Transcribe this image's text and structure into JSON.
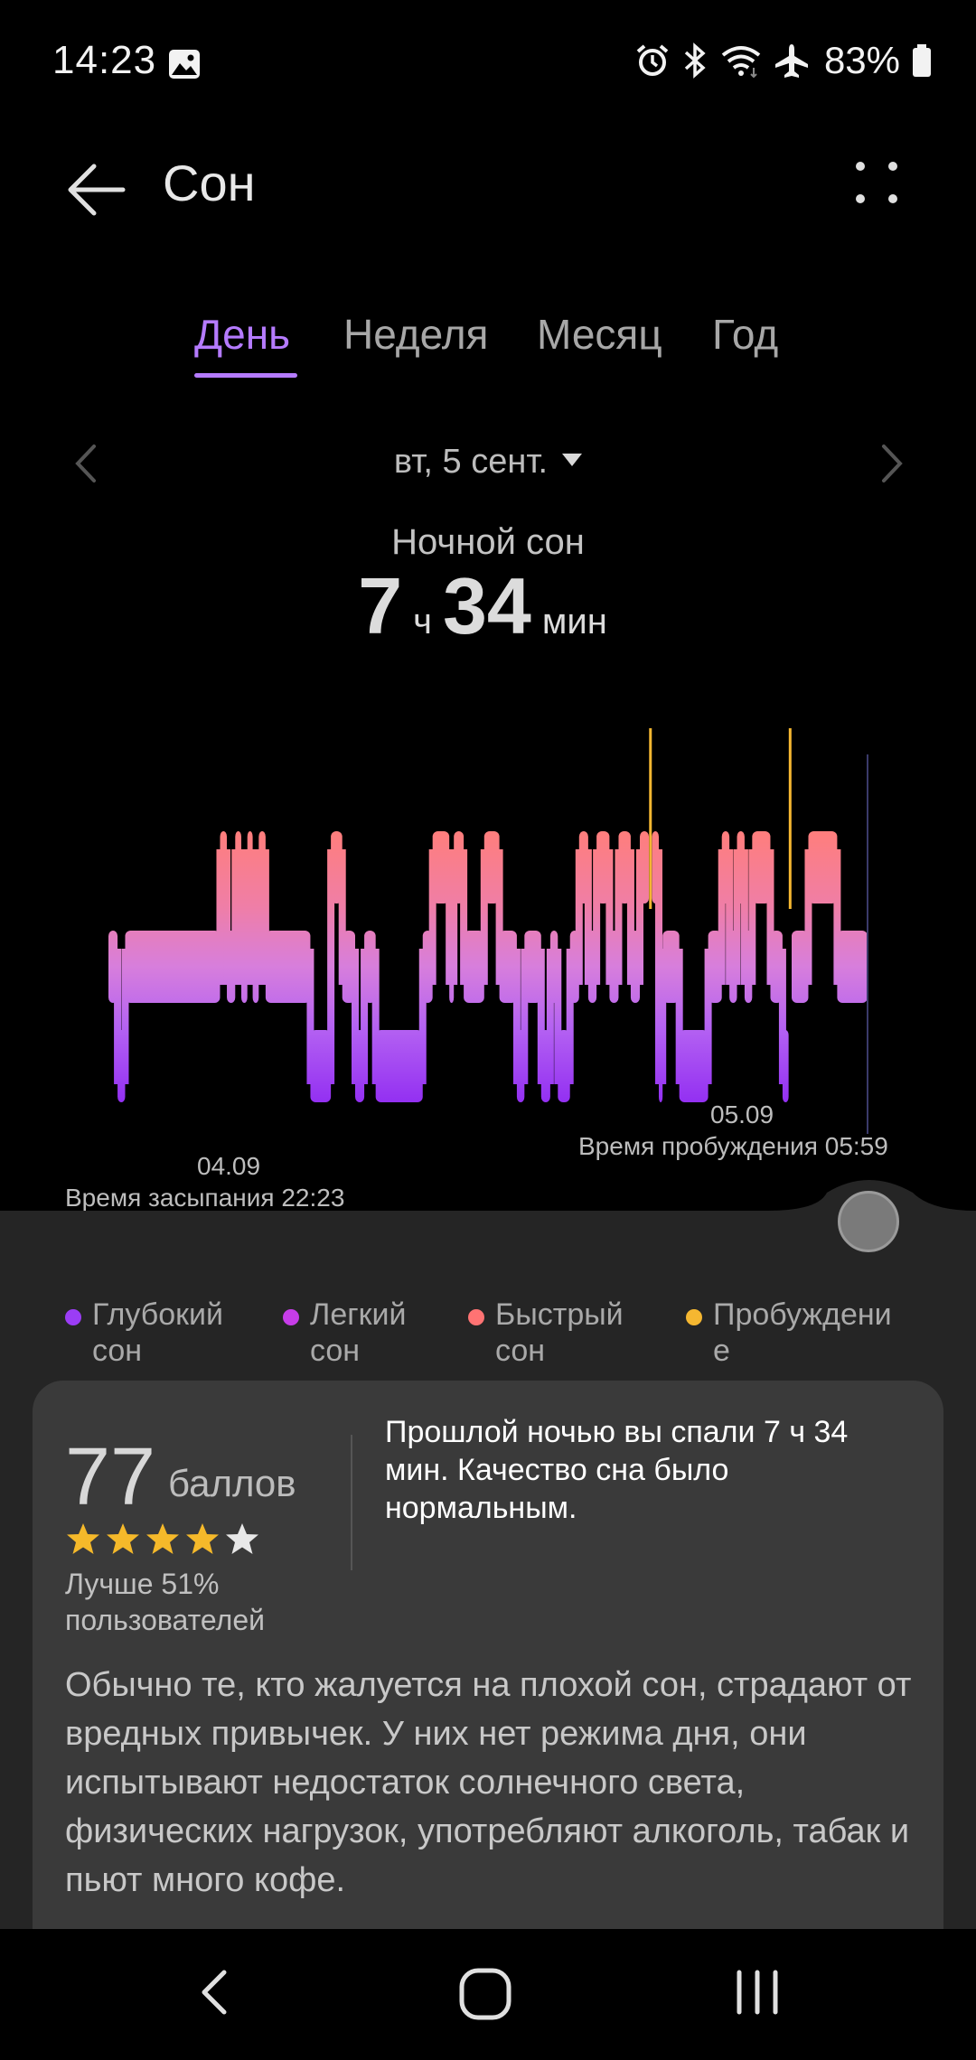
{
  "status_bar": {
    "time": "14:23",
    "battery": "83%",
    "icons": [
      "gallery-icon",
      "alarm-icon",
      "bluetooth-icon",
      "wifi-icon",
      "airplane-icon",
      "battery-icon"
    ]
  },
  "app_bar": {
    "title": "Сон"
  },
  "tabs": [
    {
      "label": "День",
      "active": true
    },
    {
      "label": "Неделя",
      "active": false
    },
    {
      "label": "Месяц",
      "active": false
    },
    {
      "label": "Год",
      "active": false
    }
  ],
  "date_nav": {
    "date": "вт, 5 сент."
  },
  "summary": {
    "label": "Ночной сон",
    "hours": "7",
    "hours_unit": "ч",
    "minutes": "34",
    "minutes_unit": "мин"
  },
  "chart_data": {
    "type": "hypnogram",
    "stage_colors": {
      "deep": "#9b3df5",
      "light": "#c77df0",
      "rem": "#ff7d80",
      "awake": "#f5b731"
    },
    "start_date": "04.09",
    "end_date": "05.09",
    "sleep_onset_label": "Время засыпания 22:23",
    "wake_label": "Время пробуждения 05:59",
    "segments": [
      {
        "stage": "light",
        "from": 0.0,
        "to": 0.012
      },
      {
        "stage": "deep",
        "from": 0.012,
        "to": 0.022
      },
      {
        "stage": "light",
        "from": 0.022,
        "to": 0.147
      },
      {
        "stage": "rem",
        "from": 0.147,
        "to": 0.156
      },
      {
        "stage": "light",
        "from": 0.156,
        "to": 0.167
      },
      {
        "stage": "rem",
        "from": 0.167,
        "to": 0.175
      },
      {
        "stage": "light",
        "from": 0.175,
        "to": 0.183
      },
      {
        "stage": "rem",
        "from": 0.183,
        "to": 0.19
      },
      {
        "stage": "light",
        "from": 0.19,
        "to": 0.198
      },
      {
        "stage": "rem",
        "from": 0.198,
        "to": 0.207
      },
      {
        "stage": "light",
        "from": 0.207,
        "to": 0.266
      },
      {
        "stage": "deep",
        "from": 0.266,
        "to": 0.293
      },
      {
        "stage": "rem",
        "from": 0.293,
        "to": 0.308
      },
      {
        "stage": "light",
        "from": 0.308,
        "to": 0.325
      },
      {
        "stage": "deep",
        "from": 0.325,
        "to": 0.337
      },
      {
        "stage": "light",
        "from": 0.337,
        "to": 0.352
      },
      {
        "stage": "deep",
        "from": 0.352,
        "to": 0.414
      },
      {
        "stage": "light",
        "from": 0.414,
        "to": 0.427
      },
      {
        "stage": "rem",
        "from": 0.427,
        "to": 0.449
      },
      {
        "stage": "light",
        "from": 0.449,
        "to": 0.455
      },
      {
        "stage": "rem",
        "from": 0.455,
        "to": 0.468
      },
      {
        "stage": "light",
        "from": 0.468,
        "to": 0.495
      },
      {
        "stage": "rem",
        "from": 0.495,
        "to": 0.515
      },
      {
        "stage": "light",
        "from": 0.515,
        "to": 0.538
      },
      {
        "stage": "deep",
        "from": 0.538,
        "to": 0.548
      },
      {
        "stage": "light",
        "from": 0.548,
        "to": 0.57
      },
      {
        "stage": "deep",
        "from": 0.57,
        "to": 0.582
      },
      {
        "stage": "light",
        "from": 0.582,
        "to": 0.592
      },
      {
        "stage": "deep",
        "from": 0.592,
        "to": 0.608
      },
      {
        "stage": "light",
        "from": 0.608,
        "to": 0.62
      },
      {
        "stage": "rem",
        "from": 0.62,
        "to": 0.632
      },
      {
        "stage": "light",
        "from": 0.632,
        "to": 0.643
      },
      {
        "stage": "rem",
        "from": 0.643,
        "to": 0.66
      },
      {
        "stage": "light",
        "from": 0.66,
        "to": 0.672
      },
      {
        "stage": "rem",
        "from": 0.672,
        "to": 0.688
      },
      {
        "stage": "light",
        "from": 0.688,
        "to": 0.7
      },
      {
        "stage": "rem",
        "from": 0.7,
        "to": 0.712
      },
      {
        "stage": "awake",
        "from": 0.712,
        "to": 0.716
      },
      {
        "stage": "rem",
        "from": 0.716,
        "to": 0.725
      },
      {
        "stage": "deep",
        "from": 0.725,
        "to": 0.73
      },
      {
        "stage": "light",
        "from": 0.73,
        "to": 0.752
      },
      {
        "stage": "deep",
        "from": 0.752,
        "to": 0.79
      },
      {
        "stage": "light",
        "from": 0.79,
        "to": 0.808
      },
      {
        "stage": "rem",
        "from": 0.808,
        "to": 0.818
      },
      {
        "stage": "light",
        "from": 0.818,
        "to": 0.828
      },
      {
        "stage": "rem",
        "from": 0.828,
        "to": 0.838
      },
      {
        "stage": "light",
        "from": 0.838,
        "to": 0.848
      },
      {
        "stage": "rem",
        "from": 0.848,
        "to": 0.872
      },
      {
        "stage": "light",
        "from": 0.872,
        "to": 0.888
      },
      {
        "stage": "deep",
        "from": 0.888,
        "to": 0.896
      },
      {
        "stage": "awake",
        "from": 0.896,
        "to": 0.9
      },
      {
        "stage": "light",
        "from": 0.9,
        "to": 0.922
      },
      {
        "stage": "rem",
        "from": 0.922,
        "to": 0.96
      },
      {
        "stage": "light",
        "from": 0.96,
        "to": 1.0
      }
    ]
  },
  "legend": [
    {
      "line1": "Глубокий",
      "line2": "сон",
      "color": "#9b3df5"
    },
    {
      "line1": "Легкий",
      "line2": "сон",
      "color": "#c73de8"
    },
    {
      "line1": "Быстрый",
      "line2": "сон",
      "color": "#ff7373"
    },
    {
      "line1": "Пробуждени",
      "line2": "е",
      "color": "#f5b731"
    }
  ],
  "score": {
    "value": "77",
    "unit": "баллов",
    "stars_filled": 4,
    "stars_total": 5,
    "better_than": "Лучше 51% пользователей",
    "star_color": "#f5b92a"
  },
  "verdict": "Прошлой ночью вы спали 7 ч 34 мин. Качество сна было нормальным.",
  "advice": "Обычно те, кто жалуется на плохой сон, страдают от вредных привычек. У них нет режима дня, они испытывают недостаток солнечного света, физических нагрузок, употребляют алкоголь, табак и пьют много кофе."
}
